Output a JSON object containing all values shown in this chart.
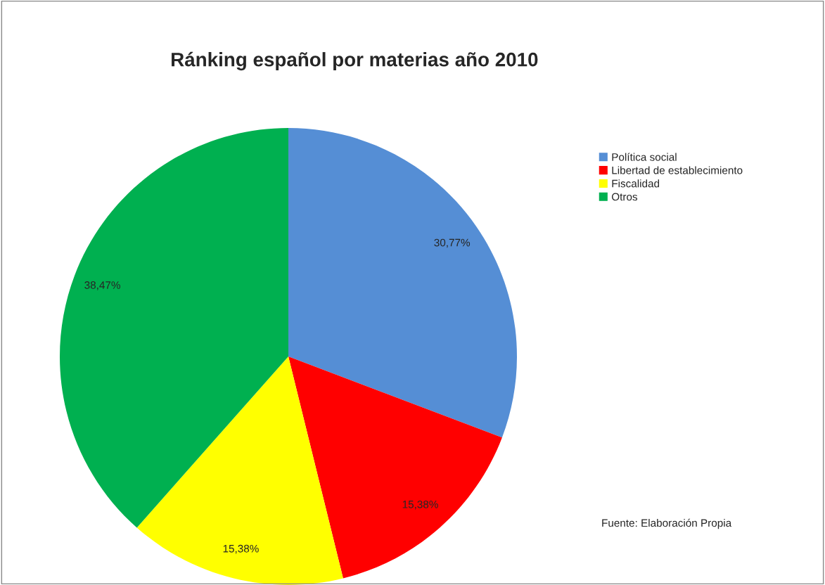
{
  "chart_data": {
    "type": "pie",
    "title": "Ránking español por materias año 2010",
    "categories": [
      "Política social",
      "Libertad de establecimiento",
      "Fiscalidad",
      "Otros"
    ],
    "values": [
      30.77,
      15.38,
      15.38,
      38.47
    ],
    "colors": [
      "#558ed5",
      "#ff0000",
      "#ffff00",
      "#00b050"
    ],
    "value_labels": [
      "30,77%",
      "15,38%",
      "15,38%",
      "38,47%"
    ],
    "legend": "top right",
    "annotations": [
      "Fuente: Elaboración Propia"
    ]
  }
}
